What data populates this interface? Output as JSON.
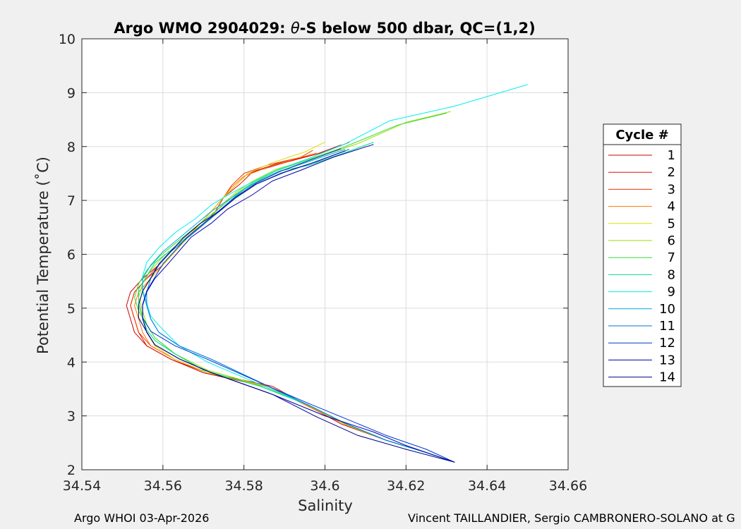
{
  "chart_data": {
    "type": "line",
    "title_prefix": "Argo WMO 2904029: ",
    "title_theta": "θ",
    "title_suffix": "-S below 500 dbar,  QC=(1,2)",
    "xlabel": "Salinity",
    "ylabel": "Potential Temperature (˚C)",
    "xlim": [
      34.54,
      34.66
    ],
    "ylim": [
      2,
      10
    ],
    "xticks": [
      "34.54",
      "34.56",
      "34.58",
      "34.6",
      "34.62",
      "34.64",
      "34.66"
    ],
    "yticks": [
      "2",
      "3",
      "4",
      "5",
      "6",
      "7",
      "8",
      "9",
      "10"
    ],
    "grid": true,
    "legend": {
      "title": "Cycle #",
      "placement": "right outside"
    },
    "series": [
      {
        "name": "1",
        "color": "#cc0000",
        "x": [
          34.604,
          34.598,
          34.588,
          34.581,
          34.578,
          34.575,
          34.572,
          34.569,
          34.565,
          34.562,
          34.559,
          34.555,
          34.552,
          34.551,
          34.552,
          34.553,
          34.556,
          34.562,
          34.57,
          34.585,
          34.595,
          34.604,
          34.615,
          34.625,
          34.632
        ],
        "y": [
          8.03,
          7.86,
          7.68,
          7.5,
          7.28,
          7.06,
          6.8,
          6.55,
          6.3,
          6.05,
          5.8,
          5.55,
          5.3,
          5.05,
          4.8,
          4.55,
          4.3,
          4.05,
          3.8,
          3.55,
          3.22,
          2.85,
          2.55,
          2.32,
          2.14
        ]
      },
      {
        "name": "2",
        "color": "#dd1100",
        "x": [
          34.606,
          34.6,
          34.59,
          34.582,
          34.579,
          34.575,
          34.573,
          34.57,
          34.566,
          34.563,
          34.56,
          34.556,
          34.553,
          34.552,
          34.553,
          34.554,
          34.556,
          34.562,
          34.571,
          34.587,
          34.596,
          34.605,
          34.615,
          34.625,
          34.632
        ],
        "y": [
          8.08,
          7.9,
          7.7,
          7.52,
          7.3,
          7.06,
          6.8,
          6.55,
          6.3,
          6.05,
          5.8,
          5.55,
          5.3,
          5.05,
          4.8,
          4.55,
          4.3,
          4.05,
          3.8,
          3.55,
          3.18,
          2.84,
          2.55,
          2.32,
          2.14
        ]
      },
      {
        "name": "3",
        "color": "#ee3300",
        "x": [
          34.597,
          34.594,
          34.586,
          34.58,
          34.577,
          34.575,
          34.572,
          34.569,
          34.565,
          34.562,
          34.559,
          34.556,
          34.553,
          34.552,
          34.553,
          34.554,
          34.557,
          34.563,
          34.571,
          34.586,
          34.596,
          34.605,
          34.615,
          34.625,
          34.632
        ],
        "y": [
          7.93,
          7.8,
          7.66,
          7.5,
          7.28,
          7.06,
          6.8,
          6.55,
          6.3,
          6.05,
          5.8,
          5.55,
          5.3,
          5.05,
          4.8,
          4.55,
          4.3,
          4.05,
          3.8,
          3.55,
          3.17,
          2.84,
          2.55,
          2.32,
          2.14
        ]
      },
      {
        "name": "4",
        "color": "#ff7700",
        "x": [
          34.598,
          34.592,
          34.586,
          34.58,
          34.577,
          34.575,
          34.572,
          34.569,
          34.566,
          34.563,
          34.56,
          34.557,
          34.554,
          34.553,
          34.554,
          34.555,
          34.557,
          34.563,
          34.571,
          34.586,
          34.594,
          34.605,
          34.615,
          34.625,
          34.632
        ],
        "y": [
          7.88,
          7.76,
          7.62,
          7.45,
          7.25,
          7.06,
          6.8,
          6.55,
          6.3,
          6.05,
          5.8,
          5.55,
          5.3,
          5.05,
          4.8,
          4.55,
          4.3,
          4.05,
          3.8,
          3.55,
          3.25,
          2.84,
          2.55,
          2.32,
          2.14
        ]
      },
      {
        "name": "5",
        "color": "#dddd00",
        "x": [
          34.6,
          34.595,
          34.587,
          34.581,
          34.578,
          34.575,
          34.572,
          34.569,
          34.566,
          34.563,
          34.56,
          34.557,
          34.555,
          34.554,
          34.555,
          34.556,
          34.558,
          34.563,
          34.571,
          34.585,
          34.596,
          34.605,
          34.615,
          34.625,
          34.632
        ],
        "y": [
          8.08,
          7.9,
          7.7,
          7.5,
          7.28,
          7.06,
          6.8,
          6.55,
          6.3,
          6.05,
          5.8,
          5.55,
          5.3,
          5.05,
          4.8,
          4.55,
          4.3,
          4.05,
          3.8,
          3.55,
          3.19,
          2.84,
          2.55,
          2.32,
          2.14
        ]
      },
      {
        "name": "6",
        "color": "#99dd00",
        "x": [
          34.631,
          34.62,
          34.608,
          34.598,
          34.588,
          34.582,
          34.578,
          34.575,
          34.572,
          34.568,
          34.564,
          34.56,
          34.557,
          34.555,
          34.554,
          34.555,
          34.556,
          34.558,
          34.563,
          34.571,
          34.585,
          34.596,
          34.605,
          34.615,
          34.625,
          34.632
        ],
        "y": [
          8.65,
          8.45,
          8.05,
          7.8,
          7.58,
          7.35,
          7.15,
          6.95,
          6.7,
          6.45,
          6.2,
          5.95,
          5.7,
          5.45,
          5.2,
          4.95,
          4.7,
          4.45,
          4.15,
          3.85,
          3.55,
          3.2,
          2.86,
          2.55,
          2.32,
          2.14
        ]
      },
      {
        "name": "7",
        "color": "#33dd33",
        "x": [
          34.63,
          34.618,
          34.605,
          34.596,
          34.588,
          34.582,
          34.578,
          34.575,
          34.571,
          34.567,
          34.563,
          34.559,
          34.556,
          34.554,
          34.553,
          34.554,
          34.556,
          34.558,
          34.563,
          34.57,
          34.584,
          34.596,
          34.605,
          34.615,
          34.625,
          34.632
        ],
        "y": [
          8.62,
          8.4,
          8.0,
          7.76,
          7.55,
          7.32,
          7.12,
          6.92,
          6.68,
          6.44,
          6.2,
          5.95,
          5.7,
          5.45,
          5.2,
          4.95,
          4.7,
          4.45,
          4.15,
          3.85,
          3.55,
          3.2,
          2.86,
          2.55,
          2.32,
          2.14
        ]
      },
      {
        "name": "8",
        "color": "#00dd88",
        "x": [
          34.612,
          34.604,
          34.596,
          34.589,
          34.584,
          34.58,
          34.577,
          34.574,
          34.57,
          34.566,
          34.562,
          34.558,
          34.556,
          34.554,
          34.554,
          34.555,
          34.556,
          34.558,
          34.563,
          34.57,
          34.584,
          34.596,
          34.605,
          34.615,
          34.625,
          34.632
        ],
        "y": [
          8.08,
          7.86,
          7.65,
          7.55,
          7.38,
          7.2,
          7.02,
          6.8,
          6.56,
          6.32,
          6.08,
          5.84,
          5.6,
          5.35,
          5.1,
          4.85,
          4.6,
          4.4,
          4.15,
          3.85,
          3.55,
          3.2,
          2.86,
          2.55,
          2.32,
          2.14
        ]
      },
      {
        "name": "9",
        "color": "#00eeee",
        "x": [
          34.65,
          34.632,
          34.616,
          34.605,
          34.596,
          34.588,
          34.582,
          34.577,
          34.572,
          34.568,
          34.563,
          34.559,
          34.556,
          34.555,
          34.555,
          34.556,
          34.557,
          34.56,
          34.564,
          34.571,
          34.585,
          34.596,
          34.605,
          34.615,
          34.625,
          34.632
        ],
        "y": [
          9.15,
          8.75,
          8.48,
          8.05,
          7.78,
          7.56,
          7.34,
          7.14,
          6.92,
          6.66,
          6.4,
          6.12,
          5.85,
          5.6,
          5.35,
          5.1,
          4.85,
          4.6,
          4.3,
          4.0,
          3.55,
          3.2,
          2.86,
          2.55,
          2.32,
          2.14
        ]
      },
      {
        "name": "10",
        "color": "#00aadd",
        "x": [
          34.605,
          34.596,
          34.588,
          34.582,
          34.577,
          34.572,
          34.568,
          34.564,
          34.56,
          34.557,
          34.555,
          34.555,
          34.556,
          34.557,
          34.559,
          34.564,
          34.572,
          34.586,
          34.596,
          34.605,
          34.615,
          34.625,
          34.632
        ],
        "y": [
          7.95,
          7.72,
          7.52,
          7.3,
          7.05,
          6.8,
          6.55,
          6.3,
          6.05,
          5.8,
          5.55,
          5.3,
          5.05,
          4.8,
          4.55,
          4.3,
          4.05,
          3.55,
          3.2,
          2.86,
          2.55,
          2.32,
          2.14
        ]
      },
      {
        "name": "11",
        "color": "#0077dd",
        "x": [
          34.606,
          34.598,
          34.59,
          34.583,
          34.578,
          34.574,
          34.57,
          34.566,
          34.562,
          34.559,
          34.557,
          34.556,
          34.556,
          34.557,
          34.559,
          34.564,
          34.572,
          34.586,
          34.596,
          34.605,
          34.615,
          34.625,
          34.632
        ],
        "y": [
          7.95,
          7.72,
          7.52,
          7.3,
          7.05,
          6.8,
          6.55,
          6.3,
          6.05,
          5.8,
          5.55,
          5.3,
          5.05,
          4.8,
          4.55,
          4.3,
          4.05,
          3.55,
          3.2,
          2.86,
          2.55,
          2.32,
          2.14
        ]
      },
      {
        "name": "12",
        "color": "#0033cc",
        "x": [
          34.604,
          34.596,
          34.589,
          34.583,
          34.578,
          34.574,
          34.57,
          34.566,
          34.563,
          34.56,
          34.558,
          34.556,
          34.555,
          34.555,
          34.557,
          34.563,
          34.571,
          34.586,
          34.597,
          34.606,
          34.615,
          34.625,
          34.632
        ],
        "y": [
          7.96,
          7.74,
          7.54,
          7.32,
          7.07,
          6.82,
          6.57,
          6.32,
          6.07,
          5.82,
          5.57,
          5.32,
          5.07,
          4.82,
          4.57,
          4.3,
          4.05,
          3.55,
          3.2,
          2.92,
          2.64,
          2.38,
          2.14
        ]
      },
      {
        "name": "13",
        "color": "#0000aa",
        "x": [
          34.612,
          34.602,
          34.594,
          34.587,
          34.582,
          34.576,
          34.572,
          34.567,
          34.564,
          34.561,
          34.558,
          34.556,
          34.555,
          34.555,
          34.556,
          34.558,
          34.564,
          34.572,
          34.587,
          34.6,
          34.612,
          34.62,
          34.632
        ],
        "y": [
          8.04,
          7.8,
          7.56,
          7.36,
          7.1,
          6.84,
          6.58,
          6.32,
          6.06,
          5.8,
          5.55,
          5.3,
          5.05,
          4.8,
          4.55,
          4.32,
          4.06,
          3.8,
          3.4,
          3.0,
          2.7,
          2.45,
          2.14
        ]
      },
      {
        "name": "14",
        "color": "#000088",
        "x": [
          34.605,
          34.597,
          34.589,
          34.583,
          34.578,
          34.574,
          34.569,
          34.565,
          34.562,
          34.559,
          34.557,
          34.555,
          34.554,
          34.554,
          34.556,
          34.558,
          34.564,
          34.572,
          34.587,
          34.598,
          34.608,
          34.62,
          34.632
        ],
        "y": [
          7.92,
          7.7,
          7.5,
          7.3,
          7.05,
          6.8,
          6.56,
          6.3,
          6.06,
          5.82,
          5.56,
          5.32,
          5.06,
          4.82,
          4.56,
          4.32,
          4.06,
          3.8,
          3.4,
          2.98,
          2.64,
          2.38,
          2.14
        ]
      }
    ]
  },
  "footer": {
    "left": "Argo WHOI 03-Apr-2026",
    "right": "Vincent TAILLANDIER, Sergio CAMBRONERO-SOLANO at G"
  }
}
